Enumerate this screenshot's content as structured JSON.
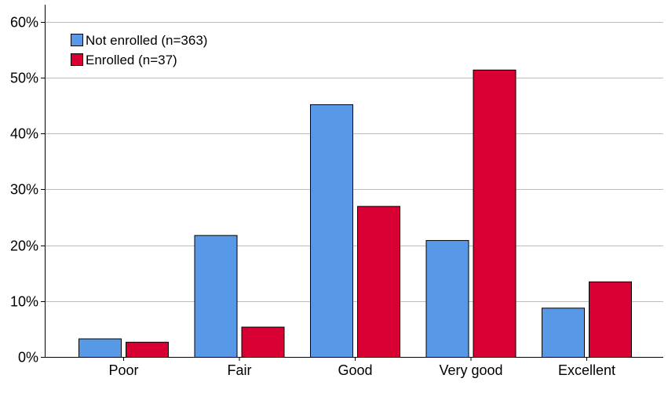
{
  "chart_data": {
    "type": "bar",
    "categories": [
      "Poor",
      "Fair",
      "Good",
      "Very good",
      "Excellent"
    ],
    "series": [
      {
        "name": "Not enrolled (n=363)",
        "values": [
          3.3,
          21.8,
          45.2,
          20.9,
          8.8
        ],
        "color": "#5799e6"
      },
      {
        "name": "Enrolled (n=37)",
        "values": [
          2.7,
          5.4,
          27.0,
          51.4,
          13.5
        ],
        "color": "#d80032"
      }
    ],
    "ylim": [
      0,
      60
    ],
    "yticks": [
      0,
      10,
      20,
      30,
      40,
      50,
      60
    ],
    "ytick_labels": [
      "0%",
      "10%",
      "20%",
      "30%",
      "40%",
      "50%",
      "60%"
    ],
    "title": "",
    "xlabel": "",
    "ylabel": "",
    "grid": "horizontal",
    "legend_position": "top-left"
  }
}
